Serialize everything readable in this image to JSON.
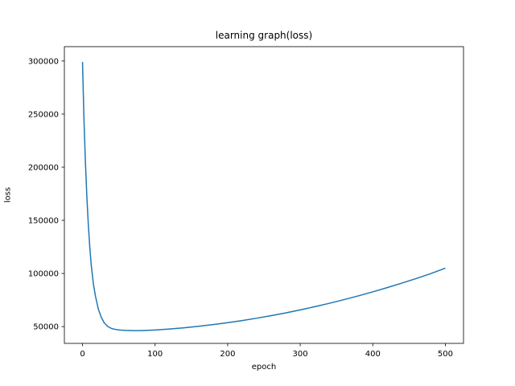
{
  "chart_data": {
    "type": "line",
    "title": "learning graph(loss)",
    "xlabel": "epoch",
    "ylabel": "loss",
    "xlim": [
      -25,
      525
    ],
    "ylim": [
      34200,
      313500
    ],
    "xticks": [
      0,
      100,
      200,
      300,
      400,
      500
    ],
    "yticks": [
      50000,
      100000,
      150000,
      200000,
      250000,
      300000
    ],
    "grid": false,
    "color": "#1f77b4",
    "series": [
      {
        "x": [
          0,
          2,
          4,
          6,
          8,
          10,
          12,
          15,
          18,
          22,
          26,
          30,
          35,
          40,
          45,
          50,
          55,
          60,
          65,
          70,
          75,
          80,
          90,
          100,
          120,
          140,
          160,
          180,
          200,
          220,
          240,
          260,
          280,
          300,
          320,
          340,
          360,
          380,
          400,
          420,
          440,
          460,
          480,
          500
        ],
        "y": [
          299000,
          245000,
          205000,
          172000,
          146000,
          125000,
          108000,
          90000,
          78000,
          66000,
          58500,
          53500,
          50000,
          48200,
          47400,
          46900,
          46600,
          46400,
          46300,
          46250,
          46200,
          46250,
          46500,
          46800,
          47700,
          48900,
          50300,
          51900,
          53700,
          55700,
          57900,
          60300,
          62900,
          65700,
          68700,
          71900,
          75300,
          78900,
          82700,
          86700,
          90900,
          95300,
          99900,
          105000
        ]
      }
    ]
  }
}
